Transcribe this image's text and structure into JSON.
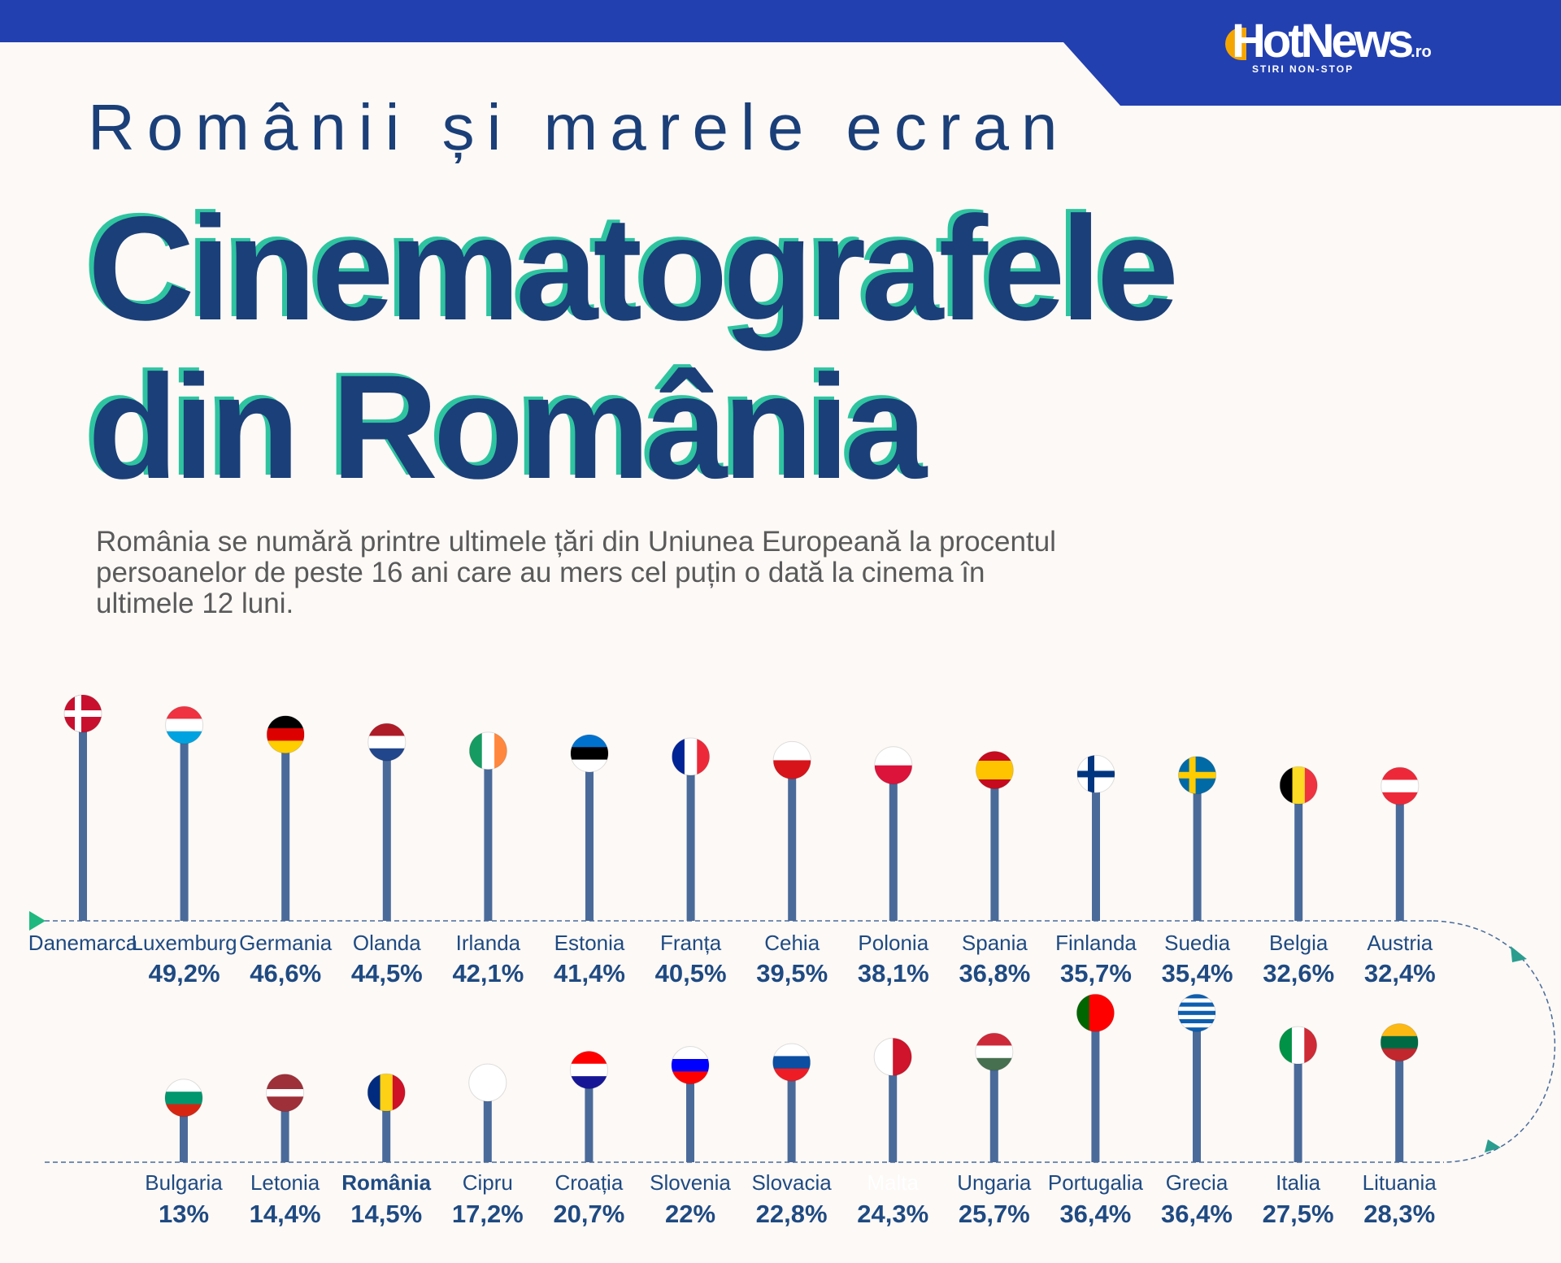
{
  "header": {
    "logo_text": "HotNews",
    "logo_suffix": ".ro",
    "logo_tagline": "STIRI NON-STOP",
    "bar_color": "#2340b0"
  },
  "kicker": "Românii și marele ecran",
  "title_line1": "Cinematografele",
  "title_line2": "din România",
  "lead": "România se numără printre ultimele țări din Uniunea Europeană la procentul persoanelor de peste 16 ani care au mers cel puțin o dată la cinema în ultimele 12 luni.",
  "colors": {
    "title": "#1b3f78",
    "accent": "#2ec4a0",
    "stick": "#4a6a9a",
    "label": "#1f4a82"
  },
  "chart_data": {
    "type": "lollipop",
    "unit": "%",
    "rows": [
      [
        {
          "name": "Danemarca",
          "value": null,
          "label": "",
          "flag": {
            "type": "cross",
            "colors": [
              "#c8102e",
              "#ffffff"
            ]
          }
        },
        {
          "name": "Luxemburg",
          "value": 49.2,
          "label": "49,2%",
          "flag": {
            "type": "h",
            "colors": [
              "#ef3340",
              "#ffffff",
              "#00a3e0"
            ]
          }
        },
        {
          "name": "Germania",
          "value": 46.6,
          "label": "46,6%",
          "flag": {
            "type": "h",
            "colors": [
              "#000000",
              "#dd0000",
              "#ffce00"
            ]
          }
        },
        {
          "name": "Olanda",
          "value": 44.5,
          "label": "44,5%",
          "flag": {
            "type": "h",
            "colors": [
              "#ae1c28",
              "#ffffff",
              "#21468b"
            ]
          }
        },
        {
          "name": "Irlanda",
          "value": 42.1,
          "label": "42,1%",
          "flag": {
            "type": "v",
            "colors": [
              "#169b62",
              "#ffffff",
              "#ff883e"
            ]
          }
        },
        {
          "name": "Estonia",
          "value": 41.4,
          "label": "41,4%",
          "flag": {
            "type": "h",
            "colors": [
              "#0072ce",
              "#000000",
              "#ffffff"
            ]
          }
        },
        {
          "name": "Franța",
          "value": 40.5,
          "label": "40,5%",
          "flag": {
            "type": "v",
            "colors": [
              "#002395",
              "#ffffff",
              "#ed2939"
            ]
          }
        },
        {
          "name": "Cehia",
          "value": 39.5,
          "label": "39,5%",
          "flag": {
            "type": "h",
            "colors": [
              "#ffffff",
              "#d7141a"
            ]
          }
        },
        {
          "name": "Polonia",
          "value": 38.1,
          "label": "38,1%",
          "flag": {
            "type": "h",
            "colors": [
              "#ffffff",
              "#dc143c"
            ]
          }
        },
        {
          "name": "Spania",
          "value": 36.8,
          "label": "36,8%",
          "flag": {
            "type": "h",
            "colors": [
              "#c60b1e",
              "#ffc400",
              "#ffc400",
              "#c60b1e"
            ]
          }
        },
        {
          "name": "Finlanda",
          "value": 35.7,
          "label": "35,7%",
          "flag": {
            "type": "cross",
            "colors": [
              "#ffffff",
              "#003580"
            ]
          }
        },
        {
          "name": "Suedia",
          "value": 35.4,
          "label": "35,4%",
          "flag": {
            "type": "cross",
            "colors": [
              "#006aa7",
              "#fecc00"
            ]
          }
        },
        {
          "name": "Belgia",
          "value": 32.6,
          "label": "32,6%",
          "flag": {
            "type": "v",
            "colors": [
              "#000000",
              "#fdda24",
              "#ef3340"
            ]
          }
        },
        {
          "name": "Austria",
          "value": 32.4,
          "label": "32,4%",
          "flag": {
            "type": "h",
            "colors": [
              "#ed2939",
              "#ffffff",
              "#ed2939"
            ]
          }
        }
      ],
      [
        {
          "name": "Bulgaria",
          "value": 13,
          "label": "13%",
          "flag": {
            "type": "h",
            "colors": [
              "#ffffff",
              "#00966e",
              "#d62612"
            ]
          }
        },
        {
          "name": "Letonia",
          "value": 14.4,
          "label": "14,4%",
          "flag": {
            "type": "h",
            "colors": [
              "#9e3039",
              "#9e3039",
              "#ffffff",
              "#9e3039",
              "#9e3039"
            ]
          }
        },
        {
          "name": "România",
          "value": 14.5,
          "label": "14,5%",
          "highlight": true,
          "flag": {
            "type": "v",
            "colors": [
              "#002b7f",
              "#fcd116",
              "#ce1126"
            ]
          }
        },
        {
          "name": "Cipru",
          "value": 17.2,
          "label": "17,2%",
          "flag": {
            "type": "h",
            "colors": [
              "#ffffff"
            ]
          }
        },
        {
          "name": "Croația",
          "value": 20.7,
          "label": "20,7%",
          "flag": {
            "type": "h",
            "colors": [
              "#ff0000",
              "#ffffff",
              "#171796"
            ]
          }
        },
        {
          "name": "Slovenia",
          "value": 22,
          "label": "22%",
          "flag": {
            "type": "h",
            "colors": [
              "#ffffff",
              "#0000ff",
              "#ff0000"
            ]
          }
        },
        {
          "name": "Slovacia",
          "value": 22.8,
          "label": "22,8%",
          "flag": {
            "type": "h",
            "colors": [
              "#ffffff",
              "#0b4ea2",
              "#ee1c25"
            ]
          }
        },
        {
          "name": "Malta",
          "value": 24.3,
          "label": "24,3%",
          "hidden_name": true,
          "flag": {
            "type": "v",
            "colors": [
              "#ffffff",
              "#cf142b"
            ]
          }
        },
        {
          "name": "Ungaria",
          "value": 25.7,
          "label": "25,7%",
          "flag": {
            "type": "h",
            "colors": [
              "#ce2939",
              "#ffffff",
              "#477050"
            ]
          }
        },
        {
          "name": "Portugalia",
          "value": 36.4,
          "label": "36,4%",
          "flag": {
            "type": "v",
            "colors": [
              "#006600",
              "#ff0000",
              "#ff0000"
            ]
          }
        },
        {
          "name": "Grecia",
          "value": 36.4,
          "label": "36,4%",
          "flag": {
            "type": "h",
            "colors": [
              "#0d5eaf",
              "#ffffff",
              "#0d5eaf",
              "#ffffff",
              "#0d5eaf",
              "#ffffff",
              "#0d5eaf",
              "#ffffff",
              "#0d5eaf"
            ]
          }
        },
        {
          "name": "Italia",
          "value": 27.5,
          "label": "27,5%",
          "flag": {
            "type": "v",
            "colors": [
              "#009246",
              "#ffffff",
              "#ce2b37"
            ]
          }
        },
        {
          "name": "Lituania",
          "value": 28.3,
          "label": "28,3%",
          "flag": {
            "type": "h",
            "colors": [
              "#fdb913",
              "#006a44",
              "#c1272d"
            ]
          }
        }
      ]
    ]
  }
}
